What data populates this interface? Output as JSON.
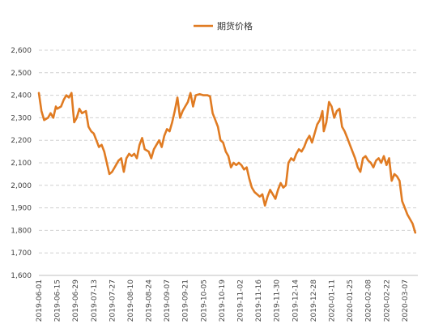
{
  "chart_data": {
    "type": "line",
    "legend_position": "top-center",
    "grid": "horizontal-dashed",
    "series": [
      {
        "name": "期货价格",
        "color": "#E07B22",
        "points": [
          [
            "2019-06-01",
            2410
          ],
          [
            "2019-06-03",
            2330
          ],
          [
            "2019-06-05",
            2290
          ],
          [
            "2019-06-08",
            2300
          ],
          [
            "2019-06-10",
            2320
          ],
          [
            "2019-06-12",
            2300
          ],
          [
            "2019-06-14",
            2350
          ],
          [
            "2019-06-15",
            2340
          ],
          [
            "2019-06-18",
            2350
          ],
          [
            "2019-06-20",
            2380
          ],
          [
            "2019-06-22",
            2400
          ],
          [
            "2019-06-24",
            2390
          ],
          [
            "2019-06-26",
            2410
          ],
          [
            "2019-06-28",
            2280
          ],
          [
            "2019-06-30",
            2300
          ],
          [
            "2019-07-02",
            2340
          ],
          [
            "2019-07-04",
            2320
          ],
          [
            "2019-07-07",
            2330
          ],
          [
            "2019-07-09",
            2260
          ],
          [
            "2019-07-11",
            2240
          ],
          [
            "2019-07-13",
            2230
          ],
          [
            "2019-07-15",
            2200
          ],
          [
            "2019-07-17",
            2170
          ],
          [
            "2019-07-19",
            2180
          ],
          [
            "2019-07-21",
            2150
          ],
          [
            "2019-07-23",
            2100
          ],
          [
            "2019-07-25",
            2050
          ],
          [
            "2019-07-27",
            2060
          ],
          [
            "2019-07-29",
            2080
          ],
          [
            "2019-08-01",
            2110
          ],
          [
            "2019-08-03",
            2120
          ],
          [
            "2019-08-05",
            2060
          ],
          [
            "2019-08-07",
            2120
          ],
          [
            "2019-08-09",
            2140
          ],
          [
            "2019-08-11",
            2130
          ],
          [
            "2019-08-13",
            2140
          ],
          [
            "2019-08-15",
            2120
          ],
          [
            "2019-08-17",
            2180
          ],
          [
            "2019-08-19",
            2210
          ],
          [
            "2019-08-21",
            2160
          ],
          [
            "2019-08-24",
            2150
          ],
          [
            "2019-08-26",
            2120
          ],
          [
            "2019-08-28",
            2160
          ],
          [
            "2019-08-30",
            2180
          ],
          [
            "2019-09-01",
            2200
          ],
          [
            "2019-09-03",
            2170
          ],
          [
            "2019-09-05",
            2220
          ],
          [
            "2019-09-07",
            2250
          ],
          [
            "2019-09-09",
            2240
          ],
          [
            "2019-09-11",
            2280
          ],
          [
            "2019-09-13",
            2330
          ],
          [
            "2019-09-15",
            2390
          ],
          [
            "2019-09-17",
            2300
          ],
          [
            "2019-09-19",
            2330
          ],
          [
            "2019-09-21",
            2350
          ],
          [
            "2019-09-23",
            2370
          ],
          [
            "2019-09-25",
            2410
          ],
          [
            "2019-09-27",
            2350
          ],
          [
            "2019-09-29",
            2400
          ],
          [
            "2019-10-02",
            2405
          ],
          [
            "2019-10-05",
            2400
          ],
          [
            "2019-10-08",
            2400
          ],
          [
            "2019-10-10",
            2395
          ],
          [
            "2019-10-12",
            2320
          ],
          [
            "2019-10-14",
            2290
          ],
          [
            "2019-10-16",
            2260
          ],
          [
            "2019-10-18",
            2200
          ],
          [
            "2019-10-20",
            2190
          ],
          [
            "2019-10-22",
            2150
          ],
          [
            "2019-10-24",
            2130
          ],
          [
            "2019-10-26",
            2080
          ],
          [
            "2019-10-28",
            2100
          ],
          [
            "2019-10-30",
            2090
          ],
          [
            "2019-11-01",
            2100
          ],
          [
            "2019-11-03",
            2090
          ],
          [
            "2019-11-05",
            2070
          ],
          [
            "2019-11-07",
            2080
          ],
          [
            "2019-11-09",
            2030
          ],
          [
            "2019-11-11",
            1990
          ],
          [
            "2019-11-13",
            1970
          ],
          [
            "2019-11-15",
            1960
          ],
          [
            "2019-11-17",
            1950
          ],
          [
            "2019-11-19",
            1960
          ],
          [
            "2019-11-21",
            1910
          ],
          [
            "2019-11-23",
            1950
          ],
          [
            "2019-11-25",
            1980
          ],
          [
            "2019-11-27",
            1960
          ],
          [
            "2019-11-29",
            1940
          ],
          [
            "2019-12-01",
            1980
          ],
          [
            "2019-12-03",
            2010
          ],
          [
            "2019-12-05",
            1990
          ],
          [
            "2019-12-07",
            2000
          ],
          [
            "2019-12-09",
            2100
          ],
          [
            "2019-12-11",
            2120
          ],
          [
            "2019-12-13",
            2110
          ],
          [
            "2019-12-15",
            2140
          ],
          [
            "2019-12-17",
            2160
          ],
          [
            "2019-12-19",
            2150
          ],
          [
            "2019-12-21",
            2170
          ],
          [
            "2019-12-23",
            2200
          ],
          [
            "2019-12-25",
            2220
          ],
          [
            "2019-12-27",
            2190
          ],
          [
            "2019-12-29",
            2230
          ],
          [
            "2019-12-31",
            2270
          ],
          [
            "2020-01-02",
            2290
          ],
          [
            "2020-01-04",
            2330
          ],
          [
            "2020-01-05",
            2240
          ],
          [
            "2020-01-07",
            2280
          ],
          [
            "2020-01-09",
            2370
          ],
          [
            "2020-01-11",
            2350
          ],
          [
            "2020-01-13",
            2300
          ],
          [
            "2020-01-15",
            2330
          ],
          [
            "2020-01-17",
            2340
          ],
          [
            "2020-01-19",
            2260
          ],
          [
            "2020-01-21",
            2240
          ],
          [
            "2020-01-23",
            2210
          ],
          [
            "2020-01-25",
            2180
          ],
          [
            "2020-01-27",
            2150
          ],
          [
            "2020-01-29",
            2120
          ],
          [
            "2020-01-31",
            2080
          ],
          [
            "2020-02-02",
            2060
          ],
          [
            "2020-02-04",
            2120
          ],
          [
            "2020-02-06",
            2130
          ],
          [
            "2020-02-08",
            2110
          ],
          [
            "2020-02-10",
            2100
          ],
          [
            "2020-02-12",
            2080
          ],
          [
            "2020-02-14",
            2110
          ],
          [
            "2020-02-16",
            2120
          ],
          [
            "2020-02-18",
            2100
          ],
          [
            "2020-02-20",
            2130
          ],
          [
            "2020-02-22",
            2090
          ],
          [
            "2020-02-24",
            2120
          ],
          [
            "2020-02-26",
            2020
          ],
          [
            "2020-02-28",
            2050
          ],
          [
            "2020-03-01",
            2040
          ],
          [
            "2020-03-03",
            2020
          ],
          [
            "2020-03-05",
            1930
          ],
          [
            "2020-03-07",
            1900
          ],
          [
            "2020-03-09",
            1870
          ],
          [
            "2020-03-11",
            1850
          ],
          [
            "2020-03-13",
            1830
          ],
          [
            "2020-03-15",
            1790
          ]
        ]
      }
    ],
    "x_axis": {
      "type": "date",
      "range": [
        "2019-06-01",
        "2020-03-17"
      ],
      "tick_labels": [
        "2019-06-01",
        "2019-06-15",
        "2019-06-29",
        "2019-07-13",
        "2019-07-27",
        "2019-08-10",
        "2019-08-24",
        "2019-09-07",
        "2019-09-21",
        "2019-10-05",
        "2019-10-19",
        "2019-11-02",
        "2019-11-16",
        "2019-11-30",
        "2019-12-14",
        "2019-12-28",
        "2020-01-11",
        "2020-01-25",
        "2020-02-08",
        "2020-02-22",
        "2020-03-07"
      ]
    },
    "y_axis": {
      "range": [
        1600,
        2600
      ],
      "tick_labels": [
        "1,600",
        "1,700",
        "1,800",
        "1,900",
        "2,000",
        "2,100",
        "2,200",
        "2,300",
        "2,400",
        "2,500",
        "2,600"
      ]
    }
  }
}
